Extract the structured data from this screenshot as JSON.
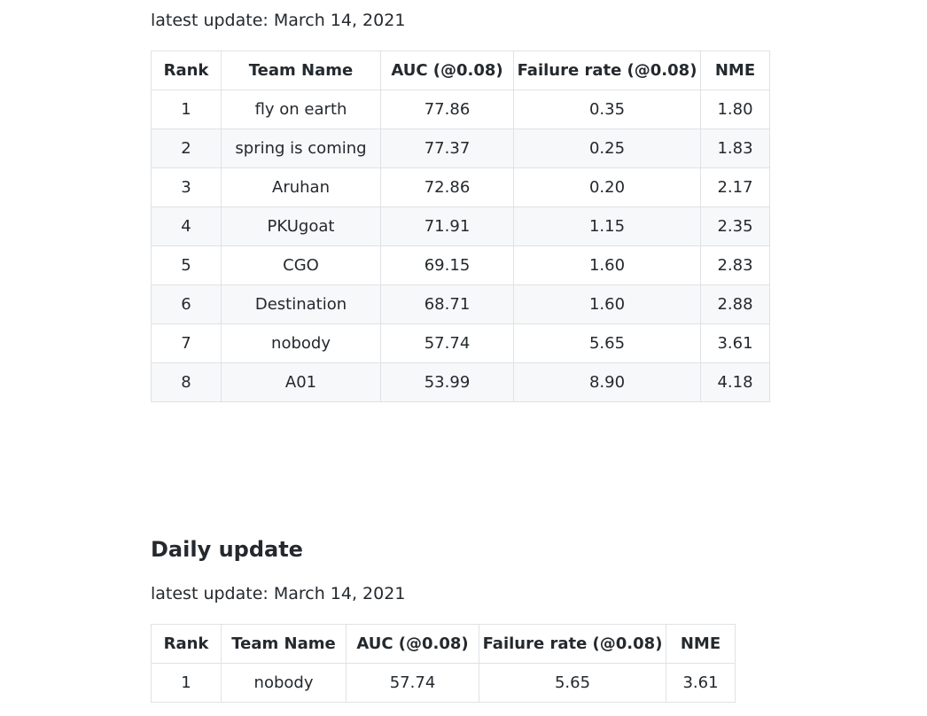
{
  "overall": {
    "update_text": "latest update: March 14, 2021",
    "headers": [
      "Rank",
      "Team Name",
      "AUC (@0.08)",
      "Failure rate (@0.08)",
      "NME"
    ],
    "rows": [
      [
        "1",
        "fly on earth",
        "77.86",
        "0.35",
        "1.80"
      ],
      [
        "2",
        "spring is coming",
        "77.37",
        "0.25",
        "1.83"
      ],
      [
        "3",
        "Aruhan",
        "72.86",
        "0.20",
        "2.17"
      ],
      [
        "4",
        "PKUgoat",
        "71.91",
        "1.15",
        "2.35"
      ],
      [
        "5",
        "CGO",
        "69.15",
        "1.60",
        "2.83"
      ],
      [
        "6",
        "Destination",
        "68.71",
        "1.60",
        "2.88"
      ],
      [
        "7",
        "nobody",
        "57.74",
        "5.65",
        "3.61"
      ],
      [
        "8",
        "A01",
        "53.99",
        "8.90",
        "4.18"
      ]
    ]
  },
  "daily": {
    "heading": "Daily update",
    "update_text": "latest update: March 14, 2021",
    "headers": [
      "Rank",
      "Team Name",
      "AUC (@0.08)",
      "Failure rate (@0.08)",
      "NME"
    ],
    "rows": [
      [
        "1",
        "nobody",
        "57.74",
        "5.65",
        "3.61"
      ]
    ]
  }
}
